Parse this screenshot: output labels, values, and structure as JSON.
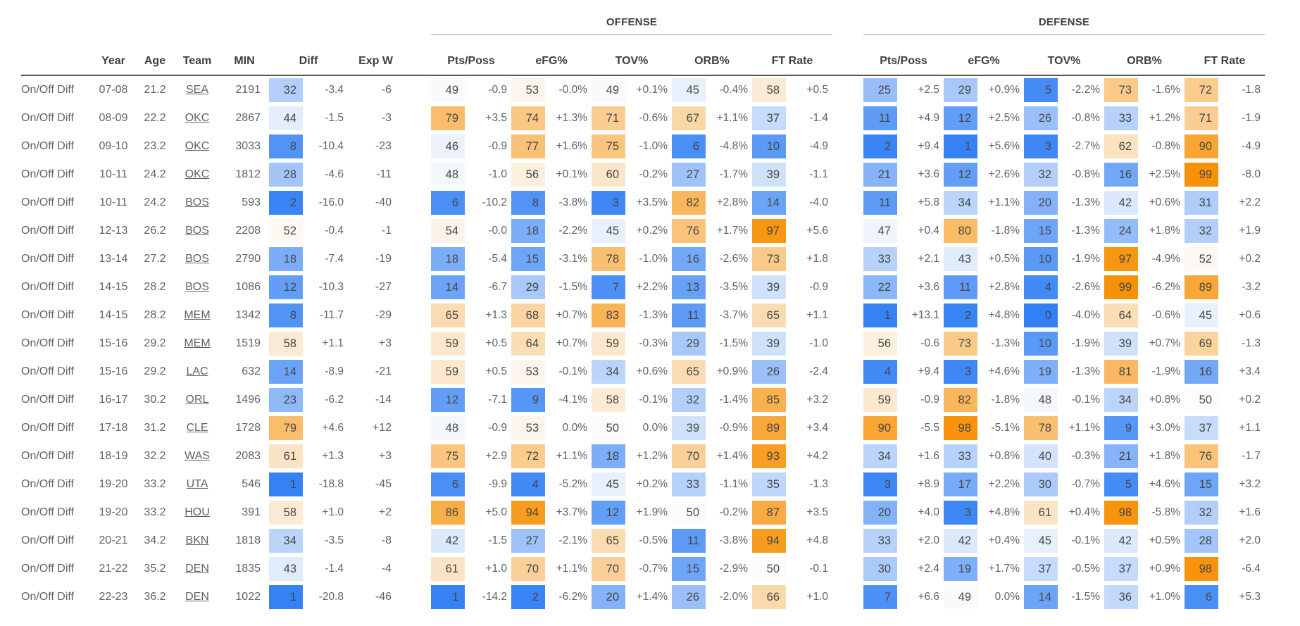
{
  "colors": {
    "pct_low": "#3280f5",
    "pct_mid": "#fcfcfc",
    "pct_high": "#f78f02",
    "text": "#5f6368",
    "header_text": "#3c4043"
  },
  "chart_data": {
    "type": "table",
    "row_label": "On/Off Diff",
    "group_headers": [
      "OFFENSE",
      "DEFENSE"
    ],
    "columns": [
      "Year",
      "Age",
      "Team",
      "MIN",
      "Diff",
      "Exp W"
    ],
    "stat_columns": [
      "Pts/Poss",
      "eFG%",
      "TOV%",
      "ORB%",
      "FT Rate"
    ],
    "legend_note": "percentile cells: blue = low (0), white = 50, orange = high (100)",
    "rows": [
      {
        "year": "07-08",
        "age": "21.2",
        "team": "SEA",
        "min": "2191",
        "diff": {
          "p": 32,
          "v": "-3.4"
        },
        "exp_w": "-6",
        "offense": [
          {
            "p": 49,
            "v": "-0.9"
          },
          {
            "p": 53,
            "v": "-0.0%"
          },
          {
            "p": 49,
            "v": "+0.1%"
          },
          {
            "p": 45,
            "v": "-0.4%"
          },
          {
            "p": 58,
            "v": "+0.5"
          }
        ],
        "defense": [
          {
            "p": 25,
            "v": "+2.5"
          },
          {
            "p": 29,
            "v": "+0.9%"
          },
          {
            "p": 5,
            "v": "-2.2%"
          },
          {
            "p": 73,
            "v": "-1.6%"
          },
          {
            "p": 72,
            "v": "-1.8"
          }
        ]
      },
      {
        "year": "08-09",
        "age": "22.2",
        "team": "OKC",
        "min": "2867",
        "diff": {
          "p": 44,
          "v": "-1.5"
        },
        "exp_w": "-3",
        "offense": [
          {
            "p": 79,
            "v": "+3.5"
          },
          {
            "p": 74,
            "v": "+1.3%"
          },
          {
            "p": 71,
            "v": "-0.6%"
          },
          {
            "p": 67,
            "v": "+1.1%"
          },
          {
            "p": 37,
            "v": "-1.4"
          }
        ],
        "defense": [
          {
            "p": 11,
            "v": "+4.9"
          },
          {
            "p": 12,
            "v": "+2.5%"
          },
          {
            "p": 26,
            "v": "-0.8%"
          },
          {
            "p": 33,
            "v": "+1.2%"
          },
          {
            "p": 71,
            "v": "-1.9"
          }
        ]
      },
      {
        "year": "09-10",
        "age": "23.2",
        "team": "OKC",
        "min": "3033",
        "diff": {
          "p": 8,
          "v": "-10.4"
        },
        "exp_w": "-23",
        "offense": [
          {
            "p": 46,
            "v": "-0.9"
          },
          {
            "p": 77,
            "v": "+1.6%"
          },
          {
            "p": 75,
            "v": "-1.0%"
          },
          {
            "p": 6,
            "v": "-4.8%"
          },
          {
            "p": 10,
            "v": "-4.9"
          }
        ],
        "defense": [
          {
            "p": 2,
            "v": "+9.4"
          },
          {
            "p": 1,
            "v": "+5.6%"
          },
          {
            "p": 3,
            "v": "-2.7%"
          },
          {
            "p": 62,
            "v": "-0.8%"
          },
          {
            "p": 90,
            "v": "-4.9"
          }
        ]
      },
      {
        "year": "10-11",
        "age": "24.2",
        "team": "OKC",
        "min": "1812",
        "diff": {
          "p": 28,
          "v": "-4.6"
        },
        "exp_w": "-11",
        "offense": [
          {
            "p": 48,
            "v": "-1.0"
          },
          {
            "p": 56,
            "v": "+0.1%"
          },
          {
            "p": 60,
            "v": "-0.2%"
          },
          {
            "p": 27,
            "v": "-1.7%"
          },
          {
            "p": 39,
            "v": "-1.1"
          }
        ],
        "defense": [
          {
            "p": 21,
            "v": "+3.6"
          },
          {
            "p": 12,
            "v": "+2.6%"
          },
          {
            "p": 32,
            "v": "-0.8%"
          },
          {
            "p": 16,
            "v": "+2.5%"
          },
          {
            "p": 99,
            "v": "-8.0"
          }
        ]
      },
      {
        "year": "10-11",
        "age": "24.2",
        "team": "BOS",
        "min": "593",
        "diff": {
          "p": 2,
          "v": "-16.0"
        },
        "exp_w": "-40",
        "offense": [
          {
            "p": 6,
            "v": "-10.2"
          },
          {
            "p": 8,
            "v": "-3.8%"
          },
          {
            "p": 3,
            "v": "+3.5%"
          },
          {
            "p": 82,
            "v": "+2.8%"
          },
          {
            "p": 14,
            "v": "-4.0"
          }
        ],
        "defense": [
          {
            "p": 11,
            "v": "+5.8"
          },
          {
            "p": 34,
            "v": "+1.1%"
          },
          {
            "p": 20,
            "v": "-1.3%"
          },
          {
            "p": 42,
            "v": "+0.6%"
          },
          {
            "p": 31,
            "v": "+2.2"
          }
        ]
      },
      {
        "year": "12-13",
        "age": "26.2",
        "team": "BOS",
        "min": "2208",
        "diff": {
          "p": 52,
          "v": "-0.4"
        },
        "exp_w": "-1",
        "offense": [
          {
            "p": 54,
            "v": "-0.0"
          },
          {
            "p": 18,
            "v": "-2.2%"
          },
          {
            "p": 45,
            "v": "+0.2%"
          },
          {
            "p": 76,
            "v": "+1.7%"
          },
          {
            "p": 97,
            "v": "+5.6"
          }
        ],
        "defense": [
          {
            "p": 47,
            "v": "+0.4"
          },
          {
            "p": 80,
            "v": "-1.8%"
          },
          {
            "p": 15,
            "v": "-1.3%"
          },
          {
            "p": 24,
            "v": "+1.8%"
          },
          {
            "p": 32,
            "v": "+1.9"
          }
        ]
      },
      {
        "year": "13-14",
        "age": "27.2",
        "team": "BOS",
        "min": "2790",
        "diff": {
          "p": 18,
          "v": "-7.4"
        },
        "exp_w": "-19",
        "offense": [
          {
            "p": 18,
            "v": "-5.4"
          },
          {
            "p": 15,
            "v": "-3.1%"
          },
          {
            "p": 78,
            "v": "-1.0%"
          },
          {
            "p": 16,
            "v": "-2.6%"
          },
          {
            "p": 73,
            "v": "+1.8"
          }
        ],
        "defense": [
          {
            "p": 33,
            "v": "+2.1"
          },
          {
            "p": 43,
            "v": "+0.5%"
          },
          {
            "p": 10,
            "v": "-1.9%"
          },
          {
            "p": 97,
            "v": "-4.9%"
          },
          {
            "p": 52,
            "v": "+0.2"
          }
        ]
      },
      {
        "year": "14-15",
        "age": "28.2",
        "team": "BOS",
        "min": "1086",
        "diff": {
          "p": 12,
          "v": "-10.3"
        },
        "exp_w": "-27",
        "offense": [
          {
            "p": 14,
            "v": "-6.7"
          },
          {
            "p": 29,
            "v": "-1.5%"
          },
          {
            "p": 7,
            "v": "+2.2%"
          },
          {
            "p": 13,
            "v": "-3.5%"
          },
          {
            "p": 39,
            "v": "-0.9"
          }
        ],
        "defense": [
          {
            "p": 22,
            "v": "+3.6"
          },
          {
            "p": 11,
            "v": "+2.8%"
          },
          {
            "p": 4,
            "v": "-2.6%"
          },
          {
            "p": 99,
            "v": "-6.2%"
          },
          {
            "p": 89,
            "v": "-3.2"
          }
        ]
      },
      {
        "year": "14-15",
        "age": "28.2",
        "team": "MEM",
        "min": "1342",
        "diff": {
          "p": 8,
          "v": "-11.7"
        },
        "exp_w": "-29",
        "offense": [
          {
            "p": 65,
            "v": "+1.3"
          },
          {
            "p": 68,
            "v": "+0.7%"
          },
          {
            "p": 83,
            "v": "-1.3%"
          },
          {
            "p": 11,
            "v": "-3.7%"
          },
          {
            "p": 65,
            "v": "+1.1"
          }
        ],
        "defense": [
          {
            "p": 1,
            "v": "+13.1"
          },
          {
            "p": 2,
            "v": "+4.8%"
          },
          {
            "p": 0,
            "v": "-4.0%"
          },
          {
            "p": 64,
            "v": "-0.6%"
          },
          {
            "p": 45,
            "v": "+0.6"
          }
        ]
      },
      {
        "year": "15-16",
        "age": "29.2",
        "team": "MEM",
        "min": "1519",
        "diff": {
          "p": 58,
          "v": "+1.1"
        },
        "exp_w": "+3",
        "offense": [
          {
            "p": 59,
            "v": "+0.5"
          },
          {
            "p": 64,
            "v": "+0.7%"
          },
          {
            "p": 59,
            "v": "-0.3%"
          },
          {
            "p": 29,
            "v": "-1.5%"
          },
          {
            "p": 39,
            "v": "-1.0"
          }
        ],
        "defense": [
          {
            "p": 56,
            "v": "-0.6"
          },
          {
            "p": 73,
            "v": "-1.3%"
          },
          {
            "p": 10,
            "v": "-1.9%"
          },
          {
            "p": 39,
            "v": "+0.7%"
          },
          {
            "p": 69,
            "v": "-1.3"
          }
        ]
      },
      {
        "year": "15-16",
        "age": "29.2",
        "team": "LAC",
        "min": "632",
        "diff": {
          "p": 14,
          "v": "-8.9"
        },
        "exp_w": "-21",
        "offense": [
          {
            "p": 59,
            "v": "+0.5"
          },
          {
            "p": 53,
            "v": "-0.1%"
          },
          {
            "p": 34,
            "v": "+0.6%"
          },
          {
            "p": 65,
            "v": "+0.9%"
          },
          {
            "p": 26,
            "v": "-2.4"
          }
        ],
        "defense": [
          {
            "p": 4,
            "v": "+9.4"
          },
          {
            "p": 3,
            "v": "+4.6%"
          },
          {
            "p": 19,
            "v": "-1.3%"
          },
          {
            "p": 81,
            "v": "-1.9%"
          },
          {
            "p": 16,
            "v": "+3.4"
          }
        ]
      },
      {
        "year": "16-17",
        "age": "30.2",
        "team": "ORL",
        "min": "1496",
        "diff": {
          "p": 23,
          "v": "-6.2"
        },
        "exp_w": "-14",
        "offense": [
          {
            "p": 12,
            "v": "-7.1"
          },
          {
            "p": 9,
            "v": "-4.1%"
          },
          {
            "p": 58,
            "v": "-0.1%"
          },
          {
            "p": 32,
            "v": "-1.4%"
          },
          {
            "p": 85,
            "v": "+3.2"
          }
        ],
        "defense": [
          {
            "p": 59,
            "v": "-0.9"
          },
          {
            "p": 82,
            "v": "-1.8%"
          },
          {
            "p": 48,
            "v": "-0.1%"
          },
          {
            "p": 34,
            "v": "+0.8%"
          },
          {
            "p": 50,
            "v": "+0.2"
          }
        ]
      },
      {
        "year": "17-18",
        "age": "31.2",
        "team": "CLE",
        "min": "1728",
        "diff": {
          "p": 79,
          "v": "+4.6"
        },
        "exp_w": "+12",
        "offense": [
          {
            "p": 48,
            "v": "-0.9"
          },
          {
            "p": 53,
            "v": "0.0%"
          },
          {
            "p": 50,
            "v": "0.0%"
          },
          {
            "p": 39,
            "v": "-0.9%"
          },
          {
            "p": 89,
            "v": "+3.4"
          }
        ],
        "defense": [
          {
            "p": 90,
            "v": "-5.5"
          },
          {
            "p": 98,
            "v": "-5.1%"
          },
          {
            "p": 78,
            "v": "+1.1%"
          },
          {
            "p": 9,
            "v": "+3.0%"
          },
          {
            "p": 37,
            "v": "+1.1"
          }
        ]
      },
      {
        "year": "18-19",
        "age": "32.2",
        "team": "WAS",
        "min": "2083",
        "diff": {
          "p": 61,
          "v": "+1.3"
        },
        "exp_w": "+3",
        "offense": [
          {
            "p": 75,
            "v": "+2.9"
          },
          {
            "p": 72,
            "v": "+1.1%"
          },
          {
            "p": 18,
            "v": "+1.2%"
          },
          {
            "p": 70,
            "v": "+1.4%"
          },
          {
            "p": 93,
            "v": "+4.2"
          }
        ],
        "defense": [
          {
            "p": 34,
            "v": "+1.6"
          },
          {
            "p": 33,
            "v": "+0.8%"
          },
          {
            "p": 40,
            "v": "-0.3%"
          },
          {
            "p": 21,
            "v": "+1.8%"
          },
          {
            "p": 76,
            "v": "-1.7"
          }
        ]
      },
      {
        "year": "19-20",
        "age": "33.2",
        "team": "UTA",
        "min": "546",
        "diff": {
          "p": 1,
          "v": "-18.8"
        },
        "exp_w": "-45",
        "offense": [
          {
            "p": 6,
            "v": "-9.9"
          },
          {
            "p": 4,
            "v": "-5.2%"
          },
          {
            "p": 45,
            "v": "+0.2%"
          },
          {
            "p": 33,
            "v": "-1.1%"
          },
          {
            "p": 35,
            "v": "-1.3"
          }
        ],
        "defense": [
          {
            "p": 3,
            "v": "+8.9"
          },
          {
            "p": 17,
            "v": "+2.2%"
          },
          {
            "p": 30,
            "v": "-0.7%"
          },
          {
            "p": 5,
            "v": "+4.6%"
          },
          {
            "p": 15,
            "v": "+3.2"
          }
        ]
      },
      {
        "year": "19-20",
        "age": "33.2",
        "team": "HOU",
        "min": "391",
        "diff": {
          "p": 58,
          "v": "+1.0"
        },
        "exp_w": "+2",
        "offense": [
          {
            "p": 86,
            "v": "+5.0"
          },
          {
            "p": 94,
            "v": "+3.7%"
          },
          {
            "p": 12,
            "v": "+1.9%"
          },
          {
            "p": 50,
            "v": "-0.2%"
          },
          {
            "p": 87,
            "v": "+3.5"
          }
        ],
        "defense": [
          {
            "p": 20,
            "v": "+4.0"
          },
          {
            "p": 3,
            "v": "+4.8%"
          },
          {
            "p": 61,
            "v": "+0.4%"
          },
          {
            "p": 98,
            "v": "-5.8%"
          },
          {
            "p": 32,
            "v": "+1.6"
          }
        ]
      },
      {
        "year": "20-21",
        "age": "34.2",
        "team": "BKN",
        "min": "1818",
        "diff": {
          "p": 34,
          "v": "-3.5"
        },
        "exp_w": "-8",
        "offense": [
          {
            "p": 42,
            "v": "-1.5"
          },
          {
            "p": 27,
            "v": "-2.1%"
          },
          {
            "p": 65,
            "v": "-0.5%"
          },
          {
            "p": 11,
            "v": "-3.8%"
          },
          {
            "p": 94,
            "v": "+4.8"
          }
        ],
        "defense": [
          {
            "p": 33,
            "v": "+2.0"
          },
          {
            "p": 42,
            "v": "+0.4%"
          },
          {
            "p": 45,
            "v": "-0.1%"
          },
          {
            "p": 42,
            "v": "+0.5%"
          },
          {
            "p": 28,
            "v": "+2.0"
          }
        ]
      },
      {
        "year": "21-22",
        "age": "35.2",
        "team": "DEN",
        "min": "1835",
        "diff": {
          "p": 43,
          "v": "-1.4"
        },
        "exp_w": "-4",
        "offense": [
          {
            "p": 61,
            "v": "+1.0"
          },
          {
            "p": 70,
            "v": "+1.1%"
          },
          {
            "p": 70,
            "v": "-0.7%"
          },
          {
            "p": 15,
            "v": "-2.9%"
          },
          {
            "p": 50,
            "v": "-0.1"
          }
        ],
        "defense": [
          {
            "p": 30,
            "v": "+2.4"
          },
          {
            "p": 19,
            "v": "+1.7%"
          },
          {
            "p": 37,
            "v": "-0.5%"
          },
          {
            "p": 37,
            "v": "+0.9%"
          },
          {
            "p": 98,
            "v": "-6.4"
          }
        ]
      },
      {
        "year": "22-23",
        "age": "36.2",
        "team": "DEN",
        "min": "1022",
        "diff": {
          "p": 1,
          "v": "-20.8"
        },
        "exp_w": "-46",
        "offense": [
          {
            "p": 1,
            "v": "-14.2"
          },
          {
            "p": 2,
            "v": "-6.2%"
          },
          {
            "p": 20,
            "v": "+1.4%"
          },
          {
            "p": 26,
            "v": "-2.0%"
          },
          {
            "p": 66,
            "v": "+1.0"
          }
        ],
        "defense": [
          {
            "p": 7,
            "v": "+6.6"
          },
          {
            "p": 49,
            "v": "0.0%"
          },
          {
            "p": 14,
            "v": "-1.5%"
          },
          {
            "p": 36,
            "v": "+1.0%"
          },
          {
            "p": 6,
            "v": "+5.3"
          }
        ]
      }
    ]
  }
}
